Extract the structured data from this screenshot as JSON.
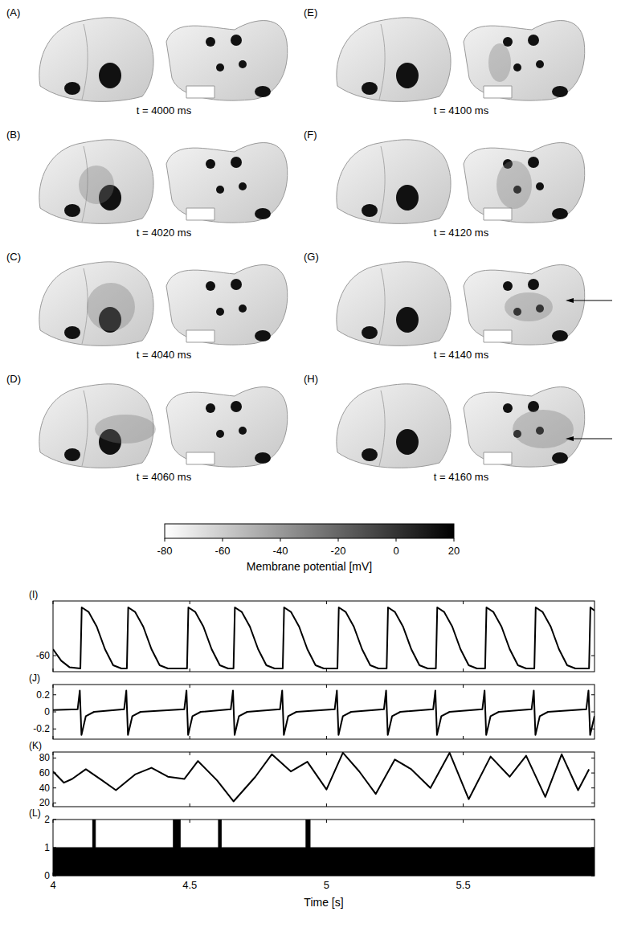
{
  "snapshots": [
    {
      "label": "(A)",
      "time": "t = 4000 ms"
    },
    {
      "label": "(B)",
      "time": "t = 4020 ms"
    },
    {
      "label": "(C)",
      "time": "t = 4040 ms"
    },
    {
      "label": "(D)",
      "time": "t = 4060 ms"
    },
    {
      "label": "(E)",
      "time": "t = 4100 ms"
    },
    {
      "label": "(F)",
      "time": "t = 4120 ms"
    },
    {
      "label": "(G)",
      "time": "t = 4140 ms"
    },
    {
      "label": "(H)",
      "time": "t = 4160 ms"
    }
  ],
  "colorbar": {
    "range": [
      -80,
      20
    ],
    "ticks": [
      -80,
      -60,
      -40,
      -20,
      0,
      20
    ],
    "label": "Membrane potential [mV]"
  },
  "chart_data": [
    {
      "type": "line",
      "title": "(I)",
      "color": "#000000",
      "tick_labels": "y",
      "xlim": [
        4,
        5.98
      ],
      "xticks": [
        4,
        4.5,
        5,
        5.5
      ],
      "ylim": [
        -85,
        25
      ],
      "yticks": [
        -60
      ],
      "x": [
        4.0,
        4.03,
        4.06,
        4.1,
        4.105,
        4.13,
        4.16,
        4.19,
        4.22,
        4.25,
        4.27,
        4.275,
        4.3,
        4.33,
        4.36,
        4.39,
        4.42,
        4.49,
        4.495,
        4.52,
        4.55,
        4.58,
        4.61,
        4.64,
        4.66,
        4.665,
        4.69,
        4.72,
        4.75,
        4.78,
        4.81,
        4.84,
        4.845,
        4.87,
        4.9,
        4.93,
        4.96,
        4.99,
        5.04,
        5.045,
        5.07,
        5.1,
        5.13,
        5.16,
        5.19,
        5.22,
        5.225,
        5.25,
        5.28,
        5.31,
        5.34,
        5.37,
        5.4,
        5.405,
        5.43,
        5.46,
        5.49,
        5.52,
        5.55,
        5.58,
        5.585,
        5.61,
        5.64,
        5.67,
        5.7,
        5.73,
        5.76,
        5.765,
        5.79,
        5.82,
        5.85,
        5.88,
        5.91,
        5.96,
        5.965,
        5.98
      ],
      "values": [
        -50,
        -68,
        -78,
        -80,
        15,
        8,
        -15,
        -50,
        -75,
        -80,
        -80,
        15,
        8,
        -15,
        -50,
        -75,
        -80,
        -80,
        15,
        8,
        -15,
        -50,
        -75,
        -80,
        -80,
        15,
        8,
        -15,
        -50,
        -75,
        -80,
        -80,
        15,
        8,
        -15,
        -50,
        -75,
        -80,
        -80,
        15,
        8,
        -15,
        -50,
        -75,
        -80,
        -80,
        15,
        8,
        -15,
        -50,
        -75,
        -80,
        -80,
        15,
        8,
        -15,
        -50,
        -75,
        -80,
        -80,
        15,
        8,
        -15,
        -50,
        -75,
        -80,
        -80,
        15,
        8,
        -15,
        -50,
        -75,
        -80,
        -80,
        15,
        10
      ]
    },
    {
      "type": "line",
      "title": "(J)",
      "color": "#000000",
      "tick_labels": "y",
      "xlim": [
        4,
        5.98
      ],
      "xticks": [
        4,
        4.5,
        5,
        5.5
      ],
      "ylim": [
        -0.32,
        0.32
      ],
      "yticks": [
        0.2,
        0,
        -0.2
      ],
      "x": [
        4.0,
        4.09,
        4.098,
        4.104,
        4.12,
        4.15,
        4.26,
        4.268,
        4.274,
        4.29,
        4.32,
        4.48,
        4.488,
        4.494,
        4.51,
        4.54,
        4.65,
        4.658,
        4.664,
        4.68,
        4.71,
        4.83,
        4.838,
        4.844,
        4.86,
        4.89,
        5.03,
        5.038,
        5.044,
        5.06,
        5.09,
        5.21,
        5.218,
        5.224,
        5.24,
        5.27,
        5.39,
        5.398,
        5.404,
        5.42,
        5.45,
        5.57,
        5.578,
        5.584,
        5.6,
        5.63,
        5.75,
        5.758,
        5.764,
        5.78,
        5.81,
        5.95,
        5.958,
        5.964,
        5.98
      ],
      "values": [
        0.02,
        0.03,
        0.25,
        -0.27,
        -0.05,
        0.0,
        0.03,
        0.25,
        -0.27,
        -0.05,
        0.0,
        0.03,
        0.25,
        -0.27,
        -0.05,
        0.0,
        0.03,
        0.25,
        -0.27,
        -0.05,
        0.0,
        0.03,
        0.25,
        -0.27,
        -0.05,
        0.0,
        0.03,
        0.25,
        -0.27,
        -0.05,
        0.0,
        0.03,
        0.25,
        -0.27,
        -0.05,
        0.0,
        0.03,
        0.25,
        -0.27,
        -0.05,
        0.0,
        0.03,
        0.25,
        -0.27,
        -0.05,
        0.0,
        0.03,
        0.25,
        -0.27,
        -0.05,
        0.0,
        0.03,
        0.25,
        -0.27,
        -0.05
      ]
    },
    {
      "type": "line",
      "title": "(K)",
      "color": "#000000",
      "tick_labels": "y",
      "xlim": [
        4,
        5.98
      ],
      "xticks": [
        4,
        4.5,
        5,
        5.5
      ],
      "ylim": [
        15,
        88
      ],
      "yticks": [
        20,
        40,
        60,
        80
      ],
      "x": [
        4.0,
        4.04,
        4.07,
        4.12,
        4.18,
        4.23,
        4.3,
        4.36,
        4.42,
        4.48,
        4.53,
        4.6,
        4.66,
        4.74,
        4.8,
        4.87,
        4.93,
        5.0,
        5.06,
        5.12,
        5.18,
        5.25,
        5.31,
        5.38,
        5.45,
        5.52,
        5.6,
        5.67,
        5.73,
        5.8,
        5.86,
        5.92,
        5.96
      ],
      "values": [
        62,
        47,
        52,
        65,
        50,
        37,
        58,
        67,
        55,
        52,
        76,
        50,
        22,
        55,
        85,
        62,
        75,
        38,
        87,
        62,
        32,
        78,
        65,
        40,
        87,
        25,
        82,
        55,
        83,
        28,
        85,
        37,
        65
      ]
    },
    {
      "type": "area",
      "title": "(L)",
      "color": "#000000",
      "line_style": "step",
      "tick_labels": true,
      "xlabel": "Time [s]",
      "xlim": [
        4,
        5.98
      ],
      "xticks": [
        4,
        4.5,
        5,
        5.5
      ],
      "ylim": [
        0,
        2
      ],
      "yticks": [
        0,
        1,
        2
      ],
      "x": [
        4.0,
        4.145,
        4.155,
        4.44,
        4.465,
        4.605,
        4.615,
        4.925,
        4.94,
        5.98
      ],
      "values": [
        1,
        2,
        1,
        2,
        1,
        2,
        1,
        2,
        1,
        1
      ]
    }
  ]
}
